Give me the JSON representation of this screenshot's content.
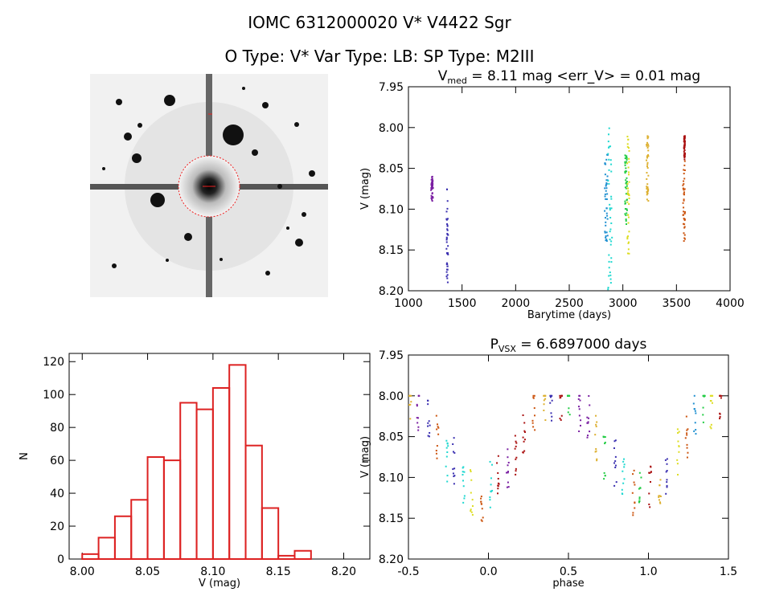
{
  "title_line1": "IOMC 6312000020     V* V4422 Sgr",
  "title_line2": "O Type: V*  Var Type: LB:  SP Type: M2III",
  "colors": {
    "hist": "#dd2222",
    "frame": "#000000"
  },
  "sky_image": {
    "description_icon": "star-field-thumbnail",
    "labels": [
      "",
      ""
    ]
  },
  "chart_data": [
    {
      "id": "lightcurve",
      "type": "scatter",
      "title_main": "V",
      "title_sub": "med",
      "title_rest": " = 8.11 mag <err_V> = 0.01 mag",
      "xlabel": "Barytime (days)",
      "ylabel": "V (mag)",
      "xlim": [
        1000,
        4000
      ],
      "ylim": [
        8.2,
        7.95
      ],
      "xticks": [
        1000,
        1500,
        2000,
        2500,
        3000,
        3500,
        4000
      ],
      "yticks": [
        7.95,
        8.0,
        8.05,
        8.1,
        8.15,
        8.2
      ],
      "groups": [
        {
          "color": "#7a1fa2",
          "x": [
            1210,
            1230
          ],
          "ymin": 8.06,
          "ymax": 8.09
        },
        {
          "color": "#3a2fb0",
          "x": [
            1355,
            1370
          ],
          "ymin": 8.075,
          "ymax": 8.19
        },
        {
          "color": "#1f8fd0",
          "x": [
            2830,
            2860
          ],
          "ymin": 8.03,
          "ymax": 8.14
        },
        {
          "color": "#20d8d0",
          "x": [
            2860,
            2900
          ],
          "ymin": 8.0,
          "ymax": 8.2
        },
        {
          "color": "#22cc44",
          "x": [
            3020,
            3040
          ],
          "ymin": 8.03,
          "ymax": 8.12
        },
        {
          "color": "#dddd22",
          "x": [
            3040,
            3060
          ],
          "ymin": 8.01,
          "ymax": 8.16
        },
        {
          "color": "#ddb030",
          "x": [
            3220,
            3240
          ],
          "ymin": 8.01,
          "ymax": 8.09
        },
        {
          "color": "#cc5510",
          "x": [
            3560,
            3580
          ],
          "ymin": 8.04,
          "ymax": 8.14
        },
        {
          "color": "#aa1010",
          "x": [
            3570,
            3580
          ],
          "ymin": 8.01,
          "ymax": 8.04
        }
      ]
    },
    {
      "id": "histogram",
      "type": "bar",
      "xlabel": "V (mag)",
      "ylabel": "N",
      "xlim": [
        7.99,
        8.22
      ],
      "ylim": [
        0,
        125
      ],
      "xticks": [
        8.0,
        8.05,
        8.1,
        8.15,
        8.2
      ],
      "yticks": [
        0,
        20,
        40,
        60,
        80,
        100,
        120
      ],
      "bin_width": 0.0125,
      "bin_starts": [
        8.0,
        8.0125,
        8.025,
        8.0375,
        8.05,
        8.0625,
        8.075,
        8.0875,
        8.1,
        8.1125,
        8.125,
        8.1375,
        8.15,
        8.1625,
        8.175
      ],
      "values": [
        3,
        13,
        26,
        36,
        62,
        60,
        95,
        91,
        104,
        118,
        69,
        31,
        2,
        5,
        0
      ]
    },
    {
      "id": "phase",
      "type": "scatter",
      "title_main": "P",
      "title_sub": "VSX",
      "title_rest": " = 6.6897000 days",
      "xlabel": "phase",
      "ylabel": "V (mag)",
      "xlim": [
        -0.5,
        1.5
      ],
      "ylim": [
        8.2,
        7.95
      ],
      "xticks": [
        -0.5,
        0.0,
        0.5,
        1.0,
        1.5
      ],
      "yticks": [
        7.95,
        8.0,
        8.05,
        8.1,
        8.15,
        8.2
      ],
      "colors": [
        "#7a1fa2",
        "#3a2fb0",
        "#1f8fd0",
        "#20d8d0",
        "#22cc44",
        "#dddd22",
        "#ddb030",
        "#cc5510",
        "#aa1010"
      ]
    }
  ]
}
